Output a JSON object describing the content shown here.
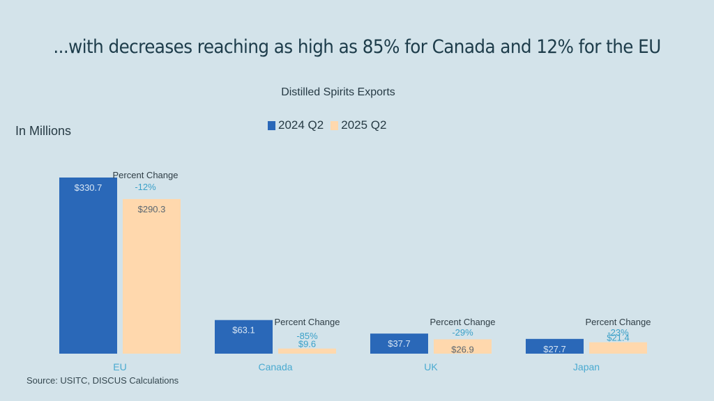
{
  "slide": {
    "headline": "...with decreases reaching as high as 85% for Canada and 12% for the EU",
    "units_label": "In Millions",
    "source": "Source: USITC, DISCUS Calculations"
  },
  "colors": {
    "background": "#d3e3ea",
    "series_2024": "#2a68b8",
    "series_2025": "#ffd8ad",
    "percent_change": "#3aa0c8",
    "category_label": "#4aaad0"
  },
  "chart_data": {
    "type": "bar",
    "title": "Distilled Spirits Exports",
    "xlabel": "",
    "ylabel": "In Millions",
    "categories": [
      "EU",
      "Canada",
      "UK",
      "Japan"
    ],
    "series": [
      {
        "name": "2024 Q2",
        "values": [
          330.7,
          63.1,
          37.7,
          27.7
        ],
        "labels": [
          "$330.7",
          "$63.1",
          "$37.7",
          "$27.7"
        ]
      },
      {
        "name": "2025 Q2",
        "values": [
          290.3,
          9.6,
          26.9,
          21.4
        ],
        "labels": [
          "$290.3",
          "$9.6",
          "$26.9",
          "$21.4"
        ]
      }
    ],
    "annotations": [
      {
        "category": "EU",
        "title": "Percent Change",
        "value": "-12%"
      },
      {
        "category": "Canada",
        "title": "Percent Change",
        "value": "-85%"
      },
      {
        "category": "UK",
        "title": "Percent Change",
        "value": "-29%"
      },
      {
        "category": "Japan",
        "title": "Percent Change",
        "value": "-23%"
      }
    ],
    "legend": [
      "2024 Q2",
      "2025 Q2"
    ],
    "legend_position": "top",
    "grid": false,
    "ylim": [
      0,
      330.7
    ]
  }
}
